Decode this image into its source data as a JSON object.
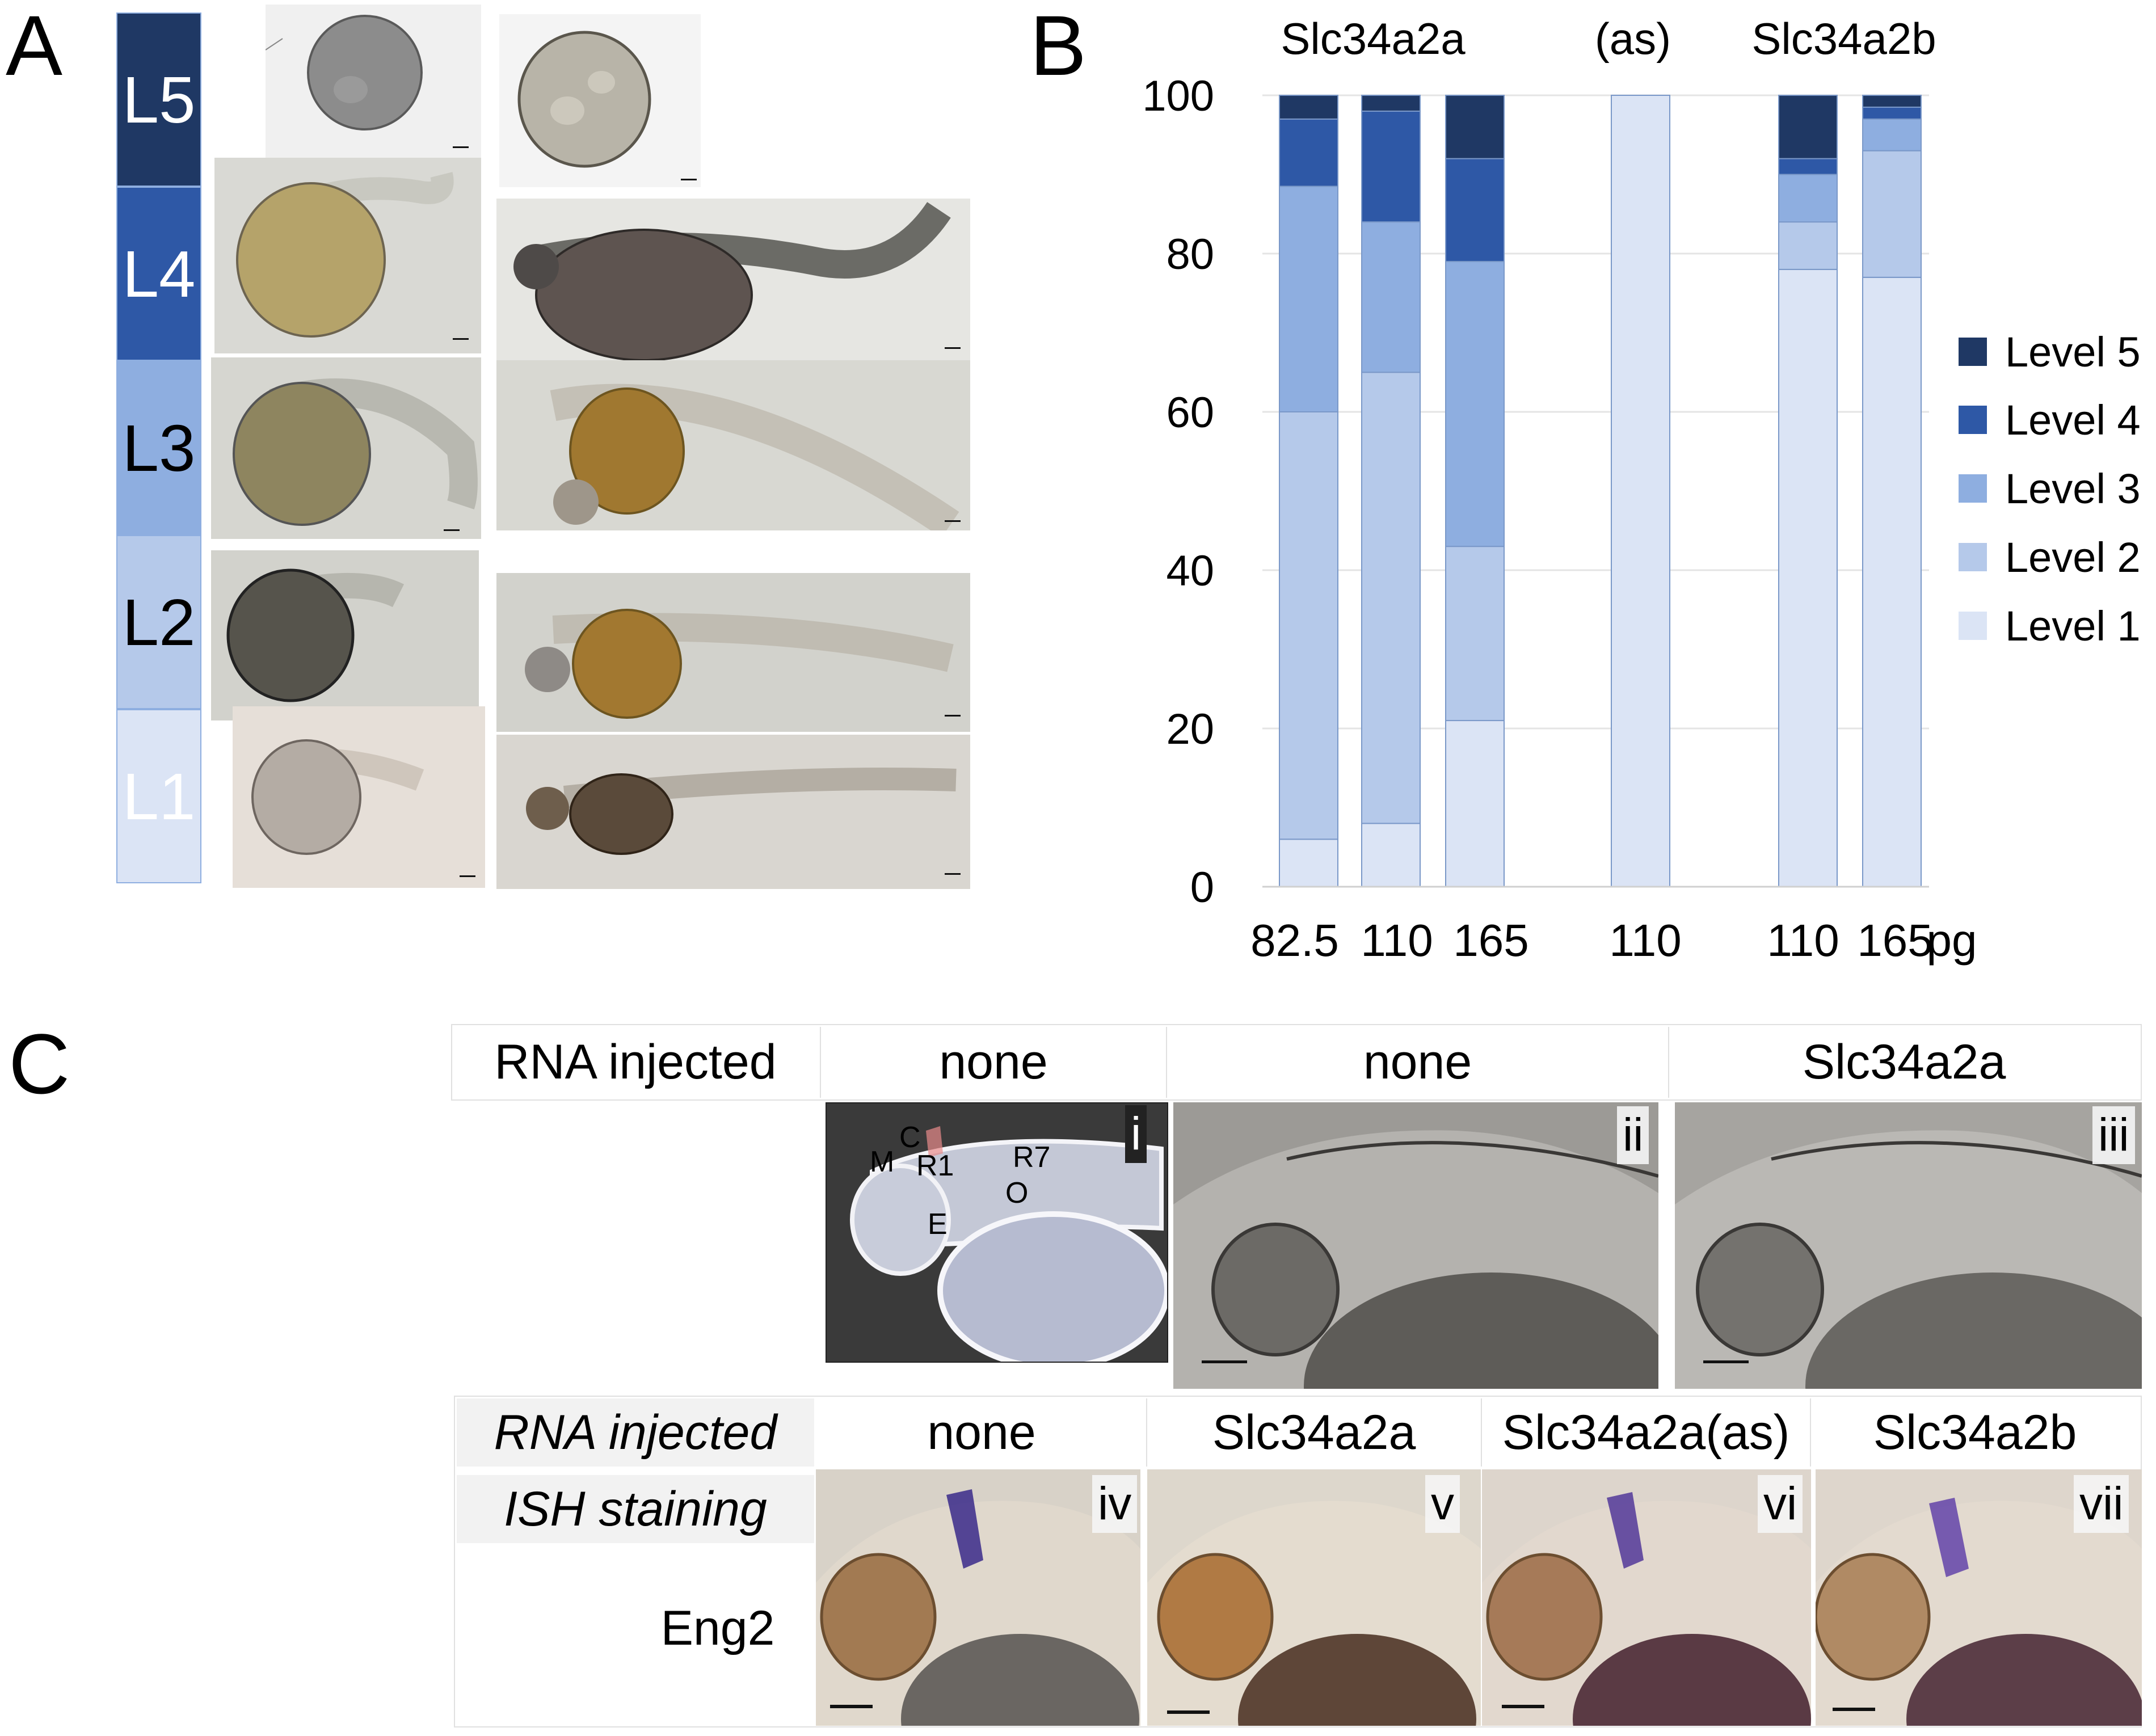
{
  "panels": {
    "a": "A",
    "b": "B",
    "c": "C"
  },
  "panel_a": {
    "levels": [
      {
        "label": "L5",
        "color": "#1f3864",
        "text_color": "#ffffff"
      },
      {
        "label": "L4",
        "color": "#2e58a6",
        "text_color": "#ffffff"
      },
      {
        "label": "L3",
        "color": "#8eaee0",
        "text_color": "#000000"
      },
      {
        "label": "L2",
        "color": "#b5c9ea",
        "text_color": "#000000"
      },
      {
        "label": "L1",
        "color": "#dbe4f5",
        "text_color": "#ffffff"
      }
    ]
  },
  "chart_data": {
    "type": "bar",
    "stacked": true,
    "group_labels": [
      "Slc34a2a",
      "(as)",
      "Slc34a2b"
    ],
    "categories": [
      "82.5",
      "110",
      "165",
      "110",
      "110",
      "165"
    ],
    "x_unit": "pg",
    "ylim": [
      0,
      100
    ],
    "yticks": [
      0,
      20,
      40,
      60,
      80,
      100
    ],
    "grid": true,
    "legend_position": "right",
    "series": [
      {
        "name": "Level 1",
        "color": "#dbe4f5",
        "values": [
          6,
          8,
          21,
          100,
          78,
          77
        ]
      },
      {
        "name": "Level 2",
        "color": "#b5c9ea",
        "values": [
          54,
          57,
          22,
          0,
          6,
          16
        ]
      },
      {
        "name": "Level 3",
        "color": "#8eaee0",
        "values": [
          28.5,
          19,
          36,
          0,
          6,
          4
        ]
      },
      {
        "name": "Level 4",
        "color": "#2e58a6",
        "values": [
          8.5,
          14,
          13,
          0,
          2,
          1.5
        ]
      },
      {
        "name": "Level 5",
        "color": "#1f3864",
        "values": [
          3,
          2,
          8,
          0,
          8,
          1.5
        ]
      }
    ]
  },
  "panel_c": {
    "top_row": {
      "row_label": "RNA injected",
      "columns": [
        "none",
        "none",
        "Slc34a2a"
      ],
      "romans": [
        "i",
        "ii",
        "iii"
      ],
      "region_labels": [
        "M",
        "C",
        "R1",
        "R7",
        "O",
        "E"
      ]
    },
    "bottom_row": {
      "row_label_1": "RNA injected",
      "row_label_2": "ISH staining",
      "gene": "Eng2",
      "columns": [
        "none",
        "Slc34a2a",
        "Slc34a2a(as)",
        "Slc34a2b"
      ],
      "romans": [
        "iv",
        "v",
        "vi",
        "vii"
      ]
    }
  }
}
